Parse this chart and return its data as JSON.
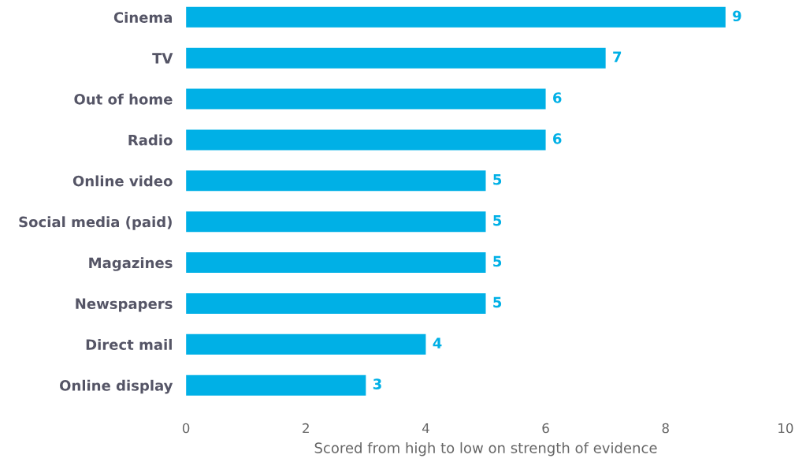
{
  "chart_data": {
    "type": "bar",
    "orientation": "horizontal",
    "xlabel": "Scored from high to low on strength of evidence",
    "categories": [
      "Cinema",
      "TV",
      "Out of home",
      "Radio",
      "Online video",
      "Social media (paid)",
      "Magazines",
      "Newspapers",
      "Direct mail",
      "Online display"
    ],
    "values": [
      9,
      7,
      6,
      6,
      5,
      5,
      5,
      5,
      4,
      3
    ],
    "color": "#00b0e6",
    "xlim": [
      0,
      10
    ],
    "xticks": [
      0,
      2,
      4,
      6,
      8,
      10
    ],
    "grid": false,
    "data_labels": true
  }
}
